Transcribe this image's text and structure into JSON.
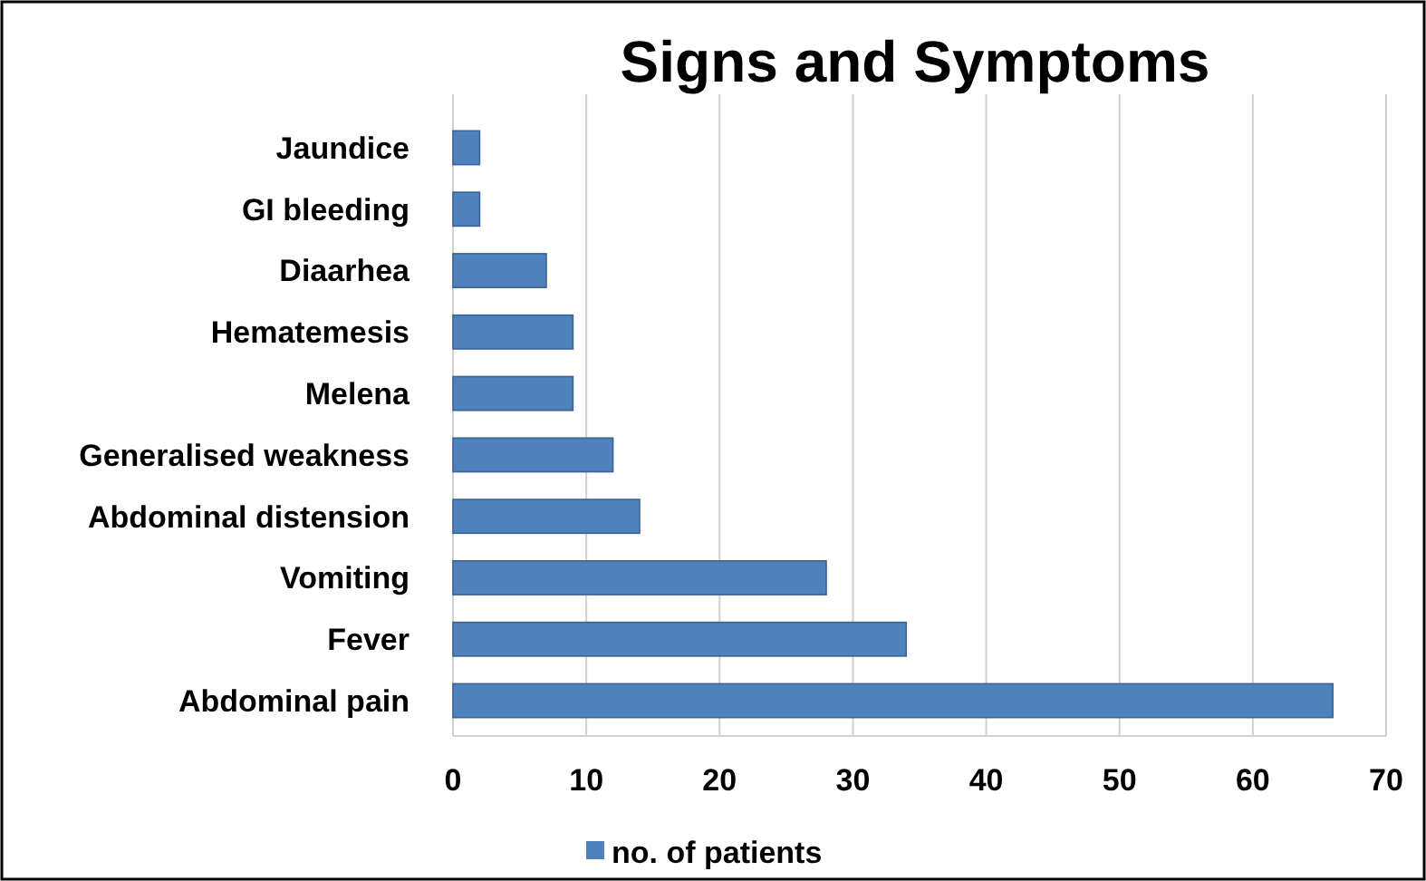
{
  "chart_data": {
    "type": "bar",
    "orientation": "horizontal",
    "title": "Signs and Symptoms",
    "categories": [
      "Jaundice",
      "GI bleeding",
      "Diaarhea",
      "Hematemesis",
      "Melena",
      "Generalised weakness",
      "Abdominal distension",
      "Vomiting",
      "Fever",
      "Abdominal pain"
    ],
    "series": [
      {
        "name": "no. of patients",
        "color": "#4f81bd",
        "values": [
          2,
          2,
          7,
          9,
          9,
          12,
          14,
          28,
          34,
          66
        ]
      }
    ],
    "xlim": [
      0,
      70
    ],
    "xticks": [
      0,
      10,
      20,
      30,
      40,
      50,
      60,
      70
    ],
    "grid": "x",
    "legend": "bottom"
  }
}
